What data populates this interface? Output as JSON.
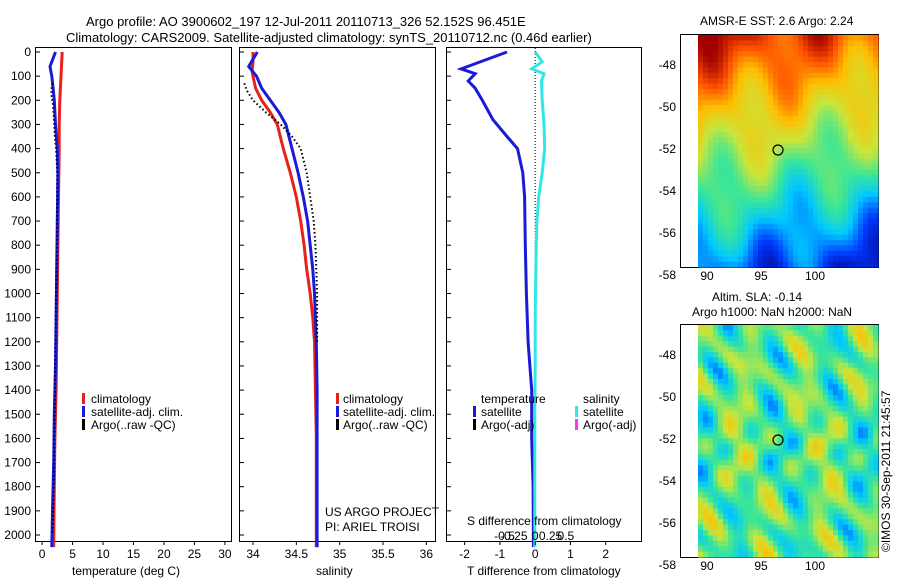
{
  "header": {
    "title_line1": "Argo profile: AO 3900602_197 12-Jul-2011 20110713_326 52.152S 96.451E",
    "title_line2": "Climatology: CARS2009. Satellite-adjusted climatology: synTS_20110712.nc (0.46d earlier)"
  },
  "colors": {
    "climatology": "#e8221b",
    "satellite": "#1a1ad8",
    "argo": "#000000",
    "salinity_satellite": "#33e6e6",
    "salinity_argo": "#ff33ff"
  },
  "chart_data": [
    {
      "id": "temperature",
      "type": "line",
      "xlabel": "temperature (deg C)",
      "ylabel": "",
      "xlim": [
        -1,
        31
      ],
      "ylim": [
        2050,
        0
      ],
      "x_ticks": [
        0,
        5,
        10,
        15,
        20,
        25,
        30
      ],
      "y_ticks": [
        0,
        100,
        200,
        300,
        400,
        500,
        600,
        700,
        800,
        900,
        1000,
        1100,
        1200,
        1300,
        1400,
        1500,
        1600,
        1700,
        1800,
        1900,
        2000
      ],
      "legend": {
        "position": "lower-right",
        "items": [
          "climatology",
          "satellite-adj. clim.",
          "Argo(..raw -QC)"
        ]
      },
      "series": [
        {
          "name": "climatology",
          "color": "#e8221b",
          "points": [
            [
              3.3,
              0
            ],
            [
              3.2,
              50
            ],
            [
              3.1,
              100
            ],
            [
              3.0,
              150
            ],
            [
              2.9,
              200
            ],
            [
              2.8,
              300
            ],
            [
              2.8,
              400
            ],
            [
              2.7,
              600
            ],
            [
              2.6,
              800
            ],
            [
              2.5,
              1000
            ],
            [
              2.4,
              1200
            ],
            [
              2.3,
              1400
            ],
            [
              2.1,
              1600
            ],
            [
              2.0,
              1800
            ],
            [
              1.9,
              2050
            ]
          ]
        },
        {
          "name": "satellite-adj. clim.",
          "color": "#1a1ad8",
          "points": [
            [
              2.2,
              0
            ],
            [
              1.3,
              60
            ],
            [
              1.6,
              100
            ],
            [
              1.8,
              150
            ],
            [
              2.0,
              200
            ],
            [
              2.2,
              300
            ],
            [
              2.5,
              400
            ],
            [
              2.6,
              500
            ],
            [
              2.5,
              700
            ],
            [
              2.4,
              900
            ],
            [
              2.3,
              1100
            ],
            [
              2.2,
              1300
            ],
            [
              2.0,
              1500
            ],
            [
              1.9,
              1700
            ],
            [
              1.7,
              1900
            ],
            [
              1.6,
              2050
            ]
          ]
        },
        {
          "name": "Argo(..raw -QC)",
          "color": "#000000",
          "points": [
            [
              1.7,
              130
            ],
            [
              1.5,
              160
            ],
            [
              1.6,
              190
            ],
            [
              1.8,
              220
            ],
            [
              1.9,
              260
            ],
            [
              2.0,
              300
            ],
            [
              2.1,
              350
            ],
            [
              2.3,
              400
            ],
            [
              2.4,
              450
            ],
            [
              2.5,
              500
            ],
            [
              2.5,
              600
            ],
            [
              2.4,
              800
            ],
            [
              2.3,
              1000
            ],
            [
              2.2,
              1200
            ],
            [
              2.1,
              1400
            ],
            [
              2.0,
              1600
            ],
            [
              1.9,
              1800
            ],
            [
              1.7,
              2000
            ]
          ]
        }
      ]
    },
    {
      "id": "salinity",
      "type": "line",
      "xlabel": "salinity",
      "ylabel": "",
      "xlim": [
        33.85,
        36.1
      ],
      "ylim": [
        2050,
        0
      ],
      "x_ticks": [
        34,
        34.5,
        35,
        35.5,
        36
      ],
      "legend": {
        "position": "lower-right",
        "items": [
          "climatology",
          "satellite-adj. clim.",
          "Argo(..raw -QC)"
        ]
      },
      "series": [
        {
          "name": "climatology",
          "color": "#e8221b",
          "points": [
            [
              34.0,
              0
            ],
            [
              34.0,
              40
            ],
            [
              33.99,
              80
            ],
            [
              34.0,
              100
            ],
            [
              34.03,
              150
            ],
            [
              34.1,
              200
            ],
            [
              34.2,
              250
            ],
            [
              34.28,
              300
            ],
            [
              34.35,
              400
            ],
            [
              34.43,
              500
            ],
            [
              34.5,
              600
            ],
            [
              34.55,
              700
            ],
            [
              34.59,
              800
            ],
            [
              34.62,
              900
            ],
            [
              34.66,
              1000
            ],
            [
              34.69,
              1100
            ],
            [
              34.71,
              1200
            ],
            [
              34.72,
              1400
            ],
            [
              34.73,
              1600
            ],
            [
              34.73,
              2050
            ]
          ]
        },
        {
          "name": "satellite-adj. clim.",
          "color": "#1a1ad8",
          "points": [
            [
              34.05,
              0
            ],
            [
              33.95,
              60
            ],
            [
              34.04,
              100
            ],
            [
              34.1,
              150
            ],
            [
              34.2,
              200
            ],
            [
              34.3,
              250
            ],
            [
              34.38,
              300
            ],
            [
              34.45,
              400
            ],
            [
              34.52,
              500
            ],
            [
              34.58,
              600
            ],
            [
              34.63,
              700
            ],
            [
              34.66,
              800
            ],
            [
              34.69,
              900
            ],
            [
              34.71,
              1000
            ],
            [
              34.73,
              1200
            ],
            [
              34.74,
              1400
            ],
            [
              34.74,
              1600
            ],
            [
              34.74,
              2050
            ]
          ]
        },
        {
          "name": "Argo(..raw -QC)",
          "color": "#000000",
          "points": [
            [
              33.9,
              130
            ],
            [
              33.93,
              160
            ],
            [
              34.0,
              200
            ],
            [
              34.15,
              250
            ],
            [
              34.32,
              300
            ],
            [
              34.45,
              350
            ],
            [
              34.55,
              400
            ],
            [
              34.62,
              500
            ],
            [
              34.66,
              600
            ],
            [
              34.7,
              700
            ],
            [
              34.72,
              800
            ],
            [
              34.73,
              900
            ],
            [
              34.74,
              1000
            ],
            [
              34.74,
              1200
            ]
          ]
        }
      ]
    },
    {
      "id": "difference",
      "type": "line",
      "xlabel": "T difference from climatology",
      "x2label": "S difference from climatology",
      "ylabel": "",
      "xlim": [
        -2.5,
        3.0
      ],
      "ylim": [
        2050,
        0
      ],
      "x_ticks": [
        -2,
        -1,
        0,
        1,
        2
      ],
      "x2_ticks": [
        "-0.5",
        "-0.25",
        "0",
        "0.25",
        "0.5"
      ],
      "legend_temperature": {
        "title": "temperature",
        "items": [
          "satellite",
          "Argo(-adj)"
        ]
      },
      "legend_salinity": {
        "title": "salinity",
        "items": [
          "satellite",
          "Argo(-adj)"
        ]
      },
      "series": [
        {
          "name": "temperature satellite",
          "color": "#1a1ad8",
          "points": [
            [
              -0.8,
              0
            ],
            [
              -2.1,
              70
            ],
            [
              -1.7,
              90
            ],
            [
              -1.9,
              120
            ],
            [
              -1.7,
              150
            ],
            [
              -1.5,
              200
            ],
            [
              -1.2,
              280
            ],
            [
              -0.8,
              350
            ],
            [
              -0.5,
              400
            ],
            [
              -0.35,
              500
            ],
            [
              -0.3,
              600
            ],
            [
              -0.28,
              800
            ],
            [
              -0.25,
              1000
            ],
            [
              -0.2,
              1200
            ],
            [
              -0.1,
              1400
            ],
            [
              -0.1,
              1600
            ],
            [
              -0.06,
              1800
            ],
            [
              -0.05,
              2050
            ]
          ]
        },
        {
          "name": "salinity satellite",
          "color": "#33e6e6",
          "points": [
            [
              0.0,
              0
            ],
            [
              0.2,
              40
            ],
            [
              -0.1,
              70
            ],
            [
              0.25,
              90
            ],
            [
              0.18,
              120
            ],
            [
              0.2,
              200
            ],
            [
              0.25,
              300
            ],
            [
              0.27,
              400
            ],
            [
              0.2,
              500
            ],
            [
              0.1,
              600
            ],
            [
              0.05,
              700
            ],
            [
              0.03,
              800
            ],
            [
              0.02,
              900
            ],
            [
              0.01,
              1000
            ],
            [
              0.0,
              1100
            ],
            [
              0.0,
              1300
            ],
            [
              -0.01,
              1500
            ],
            [
              -0.01,
              1700
            ],
            [
              -0.01,
              2050
            ]
          ]
        }
      ]
    }
  ],
  "annotations": {
    "project": "US ARGO PROJECT",
    "pi": "PI: ARIEL TROISI",
    "watermark": "©IMOS 30-Sep-2011 21:45:57"
  },
  "maps": [
    {
      "id": "sst-map",
      "title": "AMSR-E SST: 2.6 Argo: 2.24",
      "x_ticks": [
        "90",
        "95",
        "100"
      ],
      "y_ticks": [
        "-48",
        "-50",
        "-52",
        "-54",
        "-56",
        "-58"
      ]
    },
    {
      "id": "sla-map",
      "title_line1": "Altim. SLA: -0.14",
      "title_line2": "Argo h1000: NaN h2000: NaN",
      "x_ticks": [
        "90",
        "95",
        "100"
      ],
      "y_ticks": [
        "-48",
        "-50",
        "-52",
        "-54",
        "-56",
        "-58"
      ]
    }
  ]
}
